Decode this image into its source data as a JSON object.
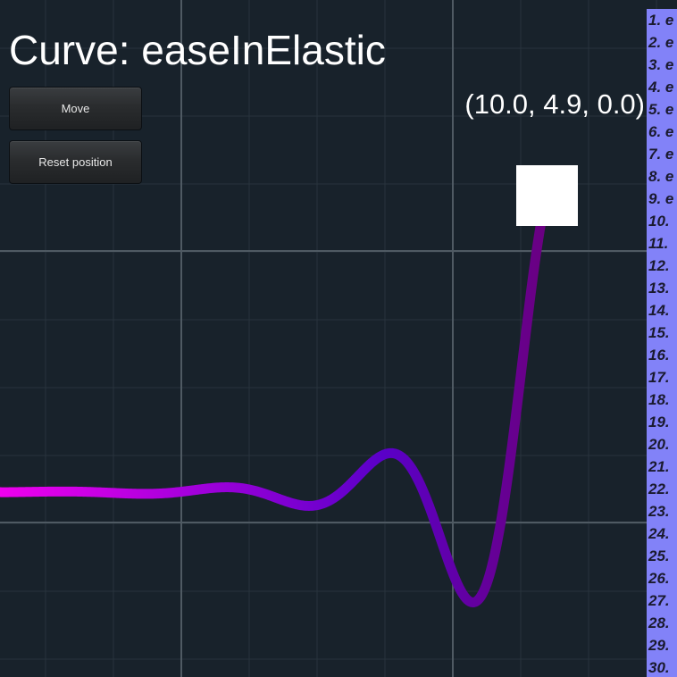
{
  "title": "Curve: easeInElastic",
  "buttons": {
    "move_label": "Move",
    "reset_label": "Reset position"
  },
  "position_readout": "(10.0, 4.9, 0.0)",
  "easing_list": [
    "1. e",
    "2. e",
    "3. e",
    "4. e",
    "5. e",
    "6. e",
    "7. e",
    "8. e",
    "9. e",
    "10.",
    "11.",
    "12.",
    "13.",
    "14.",
    "15.",
    "16.",
    "17.",
    "18.",
    "19.",
    "20.",
    "21.",
    "22.",
    "23.",
    "24.",
    "25.",
    "26.",
    "27.",
    "28.",
    "29.",
    "30."
  ],
  "curve": {
    "easing": "easeInElastic",
    "color_start": "#ee00ee",
    "color_mid": "#5a00c8",
    "color_end": "#6a0080"
  },
  "colors": {
    "background": "#18222b",
    "grid_major": "#4f5a63",
    "grid_minor": "#28333c",
    "list_panel": "#8282f8",
    "marker": "#ffffff"
  }
}
